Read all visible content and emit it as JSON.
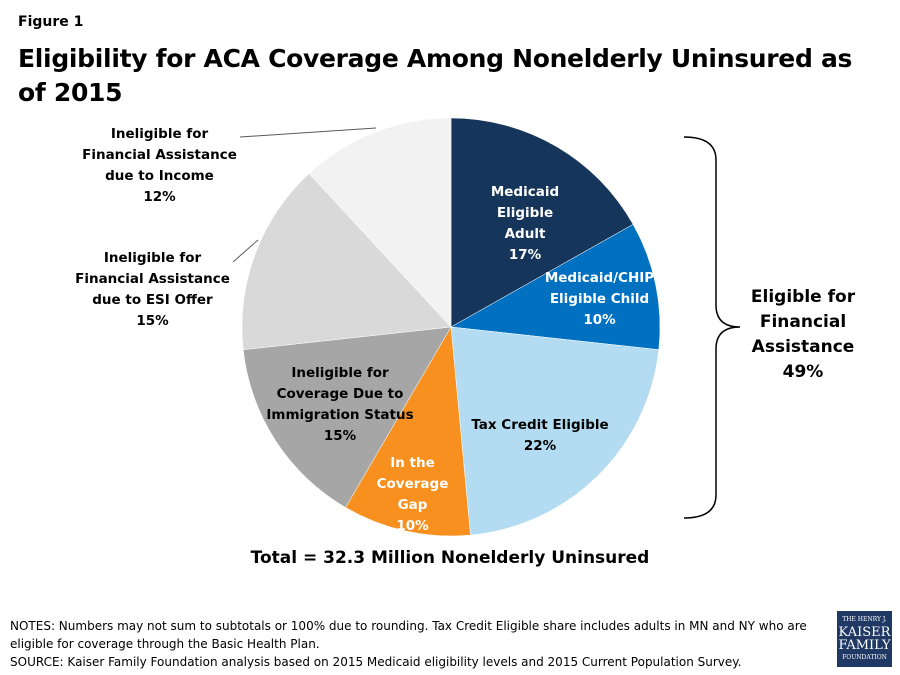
{
  "figure_label": "Figure 1",
  "chart_data": {
    "type": "pie",
    "title": "Eligibility for ACA Coverage Among Nonelderly Uninsured as of 2015",
    "slices": [
      {
        "label": "Medicaid Eligible Adult",
        "value": 17,
        "display": "17%",
        "color": "#15355a"
      },
      {
        "label": "Medicaid/CHIP Eligible Child",
        "value": 10,
        "display": "10%",
        "color": "#0070c0"
      },
      {
        "label": "Tax Credit Eligible",
        "value": 22,
        "display": "22%",
        "color": "#b3dcf2"
      },
      {
        "label": "In the Coverage Gap",
        "value": 10,
        "display": "10%",
        "color": "#f7901e"
      },
      {
        "label": "Ineligible for Coverage Due to Immigration Status",
        "value": 15,
        "display": "15%",
        "color": "#a6a6a6"
      },
      {
        "label": "Ineligible for Financial Assistance due to ESI Offer",
        "value": 15,
        "display": "15%",
        "color": "#d9d9d9"
      },
      {
        "label": "Ineligible for Financial Assistance due to Income",
        "value": 12,
        "display": "12%",
        "color": "#f2f2f2"
      }
    ],
    "bracket": {
      "label": "Eligible for Financial Assistance",
      "value": "49%"
    },
    "total": "Total = 32.3 Million Nonelderly Uninsured"
  },
  "notes": "NOTES: Numbers may not sum to subtotals or 100% due to rounding. Tax Credit Eligible share includes adults in MN and NY who are eligible for coverage through the Basic Health Plan.",
  "source": "SOURCE: Kaiser Family Foundation analysis based on 2015 Medicaid eligibility levels and 2015 Current Population Survey.",
  "logo": {
    "line1": "THE HENRY J.",
    "line2": "KAISER",
    "line3": "FAMILY",
    "line4": "FOUNDATION"
  }
}
